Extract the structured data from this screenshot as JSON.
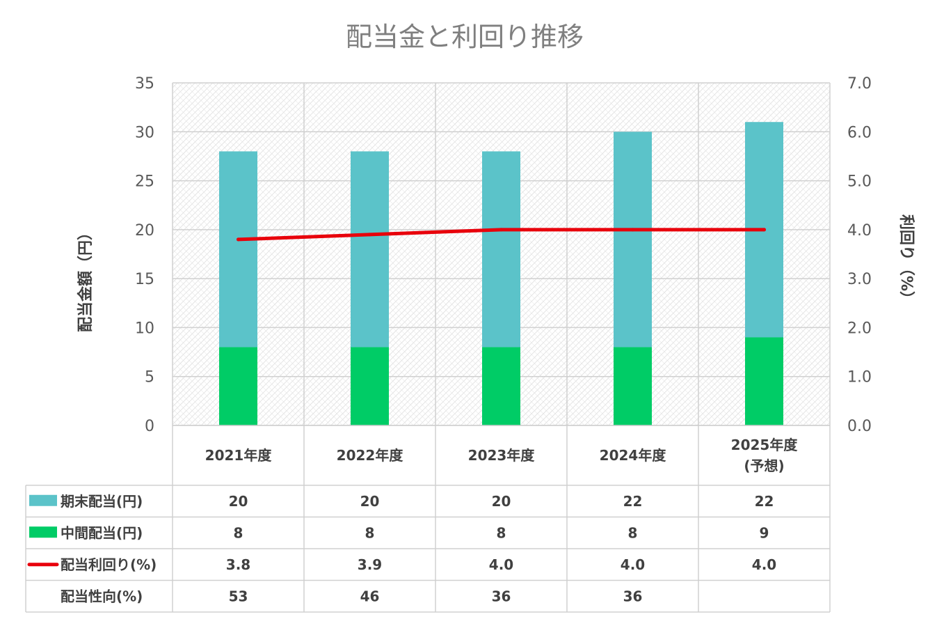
{
  "chart_data": {
    "type": "bar",
    "title": "配当金と利回り推移",
    "categories": [
      [
        "2021年度"
      ],
      [
        "2022年度"
      ],
      [
        "2023年度"
      ],
      [
        "2024年度"
      ],
      [
        "2025年度",
        "(予想)"
      ]
    ],
    "y_left": {
      "label": "配当金額（円）",
      "range": [
        0,
        35
      ],
      "ticks": [
        "0",
        "5",
        "10",
        "15",
        "20",
        "25",
        "30",
        "35"
      ]
    },
    "y_right": {
      "label": "利回り（%）",
      "range": [
        0,
        7
      ],
      "ticks": [
        "0.0",
        "1.0",
        "2.0",
        "3.0",
        "4.0",
        "5.0",
        "6.0",
        "7.0"
      ]
    },
    "series": [
      {
        "name": "中間配当(円)",
        "kind": "bar",
        "stack": true,
        "axis": "left",
        "color": "#00cc66",
        "values": [
          8,
          8,
          8,
          8,
          9
        ]
      },
      {
        "name": "期末配当(円)",
        "kind": "bar",
        "stack": true,
        "axis": "left",
        "color": "#5bc3c9",
        "values": [
          20,
          20,
          20,
          22,
          22
        ]
      },
      {
        "name": "配当利回り(%)",
        "kind": "line",
        "axis": "right",
        "color": "#e8000b",
        "values": [
          3.8,
          3.9,
          4.0,
          4.0,
          4.0
        ]
      }
    ],
    "table": {
      "rows": [
        {
          "label": "期末配当(円)",
          "marker": "box",
          "color": "#5bc3c9",
          "cells": [
            "20",
            "20",
            "20",
            "22",
            "22"
          ]
        },
        {
          "label": "中間配当(円)",
          "marker": "box",
          "color": "#00cc66",
          "cells": [
            "8",
            "8",
            "8",
            "8",
            "9"
          ]
        },
        {
          "label": "配当利回り(%)",
          "marker": "line",
          "color": "#e8000b",
          "cells": [
            "3.8",
            "3.9",
            "4.0",
            "4.0",
            "4.0"
          ]
        },
        {
          "label": "配当性向(%)",
          "marker": "none",
          "color": "",
          "cells": [
            "53",
            "46",
            "36",
            "36",
            ""
          ]
        }
      ]
    },
    "grid": true,
    "background": "hatched"
  }
}
